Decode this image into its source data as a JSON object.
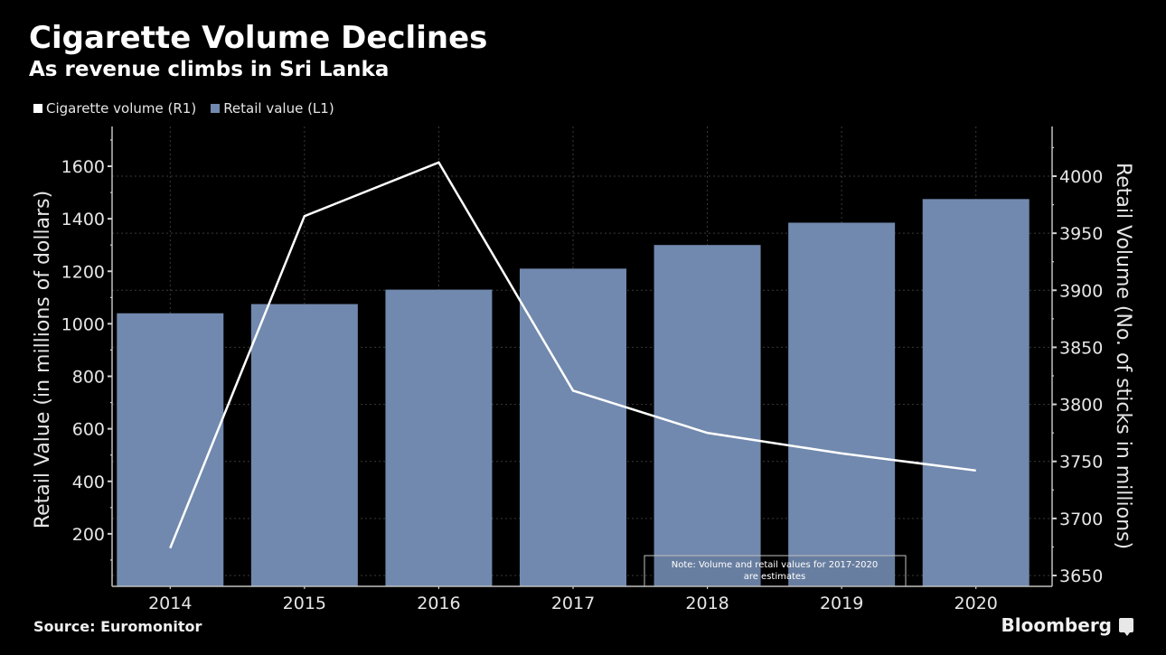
{
  "header": {
    "title": "Cigarette Volume Declines",
    "subtitle": "As revenue climbs in Sri Lanka"
  },
  "legend": [
    {
      "label": "Cigarette volume (R1)",
      "color": "#ffffff"
    },
    {
      "label": "Retail value (L1)",
      "color": "#7189ae"
    }
  ],
  "footer": {
    "source": "Source: Euromonitor",
    "brand": "Bloomberg"
  },
  "chart_data": {
    "type": "bar",
    "title": "Cigarette Volume Declines",
    "subtitle": "As revenue climbs in Sri Lanka",
    "categories": [
      "2014",
      "2015",
      "2016",
      "2017",
      "2018",
      "2019",
      "2020"
    ],
    "series": [
      {
        "name": "Retail value (L1)",
        "type": "bar",
        "axis": "left",
        "color": "#7189ae",
        "values": [
          1040,
          1075,
          1130,
          1210,
          1300,
          1385,
          1475
        ]
      },
      {
        "name": "Cigarette volume (R1)",
        "type": "line",
        "axis": "right",
        "color": "#ffffff",
        "values": [
          3674,
          3965,
          4012,
          3812,
          3775,
          3757,
          3742
        ]
      }
    ],
    "left_axis": {
      "label": "Retail Value (in millions of dollars)",
      "ylim": [
        0,
        1750
      ],
      "ticks": [
        200,
        400,
        600,
        800,
        1000,
        1200,
        1400,
        1600
      ]
    },
    "right_axis": {
      "label": "Retail Volume (No. of sticks in millions)",
      "ylim": [
        3640,
        4045
      ],
      "ticks": [
        3650,
        3700,
        3750,
        3800,
        3850,
        3900,
        3950,
        4000
      ]
    },
    "xlabel": "",
    "grid": true,
    "legend_position": "top-left",
    "annotation": "Note: Volume and retail values for 2017-2020 are estimates",
    "annotation_lines": [
      "Note: Volume and retail values for 2017-2020",
      "are estimates"
    ]
  }
}
